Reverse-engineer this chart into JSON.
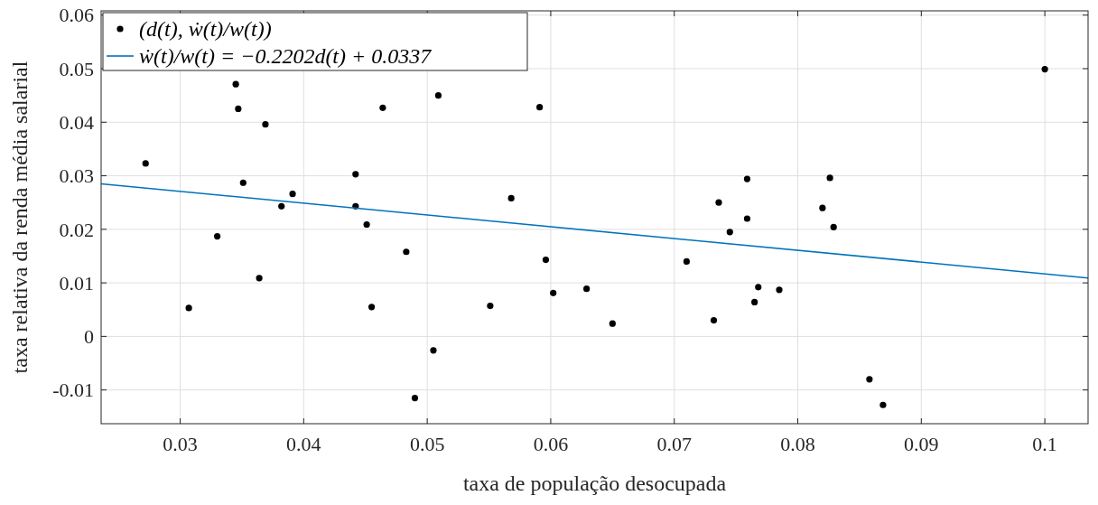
{
  "chart_data": {
    "type": "scatter",
    "xlabel": "taxa de população desocupada",
    "ylabel": "taxa relativa da renda média salarial",
    "xlim": [
      0.0236,
      0.1035
    ],
    "ylim": [
      -0.0163,
      0.0608
    ],
    "xticks": [
      0.03,
      0.04,
      0.05,
      0.06,
      0.07,
      0.08,
      0.09,
      0.1
    ],
    "yticks": [
      -0.01,
      0,
      0.01,
      0.02,
      0.03,
      0.04,
      0.05,
      0.06
    ],
    "grid": true,
    "legend": "top left",
    "series": [
      {
        "name": "(d(t), ẇ(t)/w(t))",
        "color": "#000000",
        "marker": "circle",
        "x": [
          0.0272,
          0.0307,
          0.033,
          0.0345,
          0.0347,
          0.0351,
          0.0364,
          0.0369,
          0.0382,
          0.0391,
          0.0442,
          0.0442,
          0.0451,
          0.0455,
          0.0464,
          0.0483,
          0.049,
          0.0505,
          0.0509,
          0.0551,
          0.0568,
          0.0591,
          0.0596,
          0.0602,
          0.0629,
          0.065,
          0.071,
          0.0732,
          0.0736,
          0.0745,
          0.0759,
          0.0759,
          0.0765,
          0.0768,
          0.0785,
          0.082,
          0.0826,
          0.0829,
          0.0858,
          0.0869,
          0.1
        ],
        "values": [
          0.0323,
          0.0053,
          0.0187,
          0.0471,
          0.0425,
          0.0287,
          0.0109,
          0.0396,
          0.0243,
          0.0266,
          0.0303,
          0.0243,
          0.0209,
          0.0055,
          0.0427,
          0.0158,
          -0.0115,
          -0.0026,
          0.045,
          0.0057,
          0.0258,
          0.0428,
          0.0143,
          0.0081,
          0.0089,
          0.0024,
          0.014,
          0.003,
          0.025,
          0.0195,
          0.0294,
          0.022,
          0.0064,
          0.0092,
          0.0087,
          0.024,
          0.0296,
          0.0204,
          -0.008,
          -0.0128,
          0.0499
        ]
      },
      {
        "name": "ẇ(t)/w(t) = −0.2202d(t) + 0.0337",
        "type": "line",
        "color": "#0072bd",
        "line_style": "solid",
        "marker": "none",
        "x": [
          0.0236,
          0.1035
        ],
        "values": [
          0.0285,
          0.0109
        ]
      }
    ]
  }
}
